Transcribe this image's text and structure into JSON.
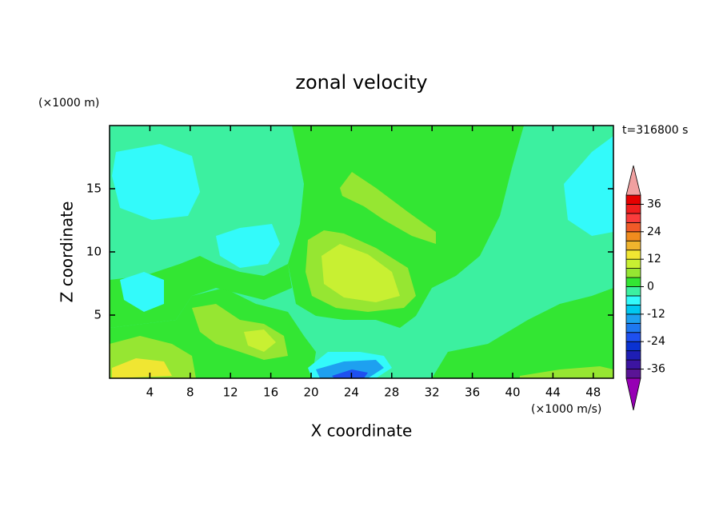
{
  "chart_data": {
    "type": "contour",
    "title": "zonal velocity",
    "xlabel": "X coordinate",
    "ylabel": "Z coordinate",
    "xunit": "(×1000 m/s)",
    "yunit": "(×1000 m)",
    "time_label": "t=316800 s",
    "xlim": [
      0,
      50
    ],
    "ylim": [
      0,
      20
    ],
    "xticks": [
      4,
      8,
      12,
      16,
      20,
      24,
      28,
      32,
      36,
      40,
      44,
      48
    ],
    "yticks": [
      5,
      10,
      15
    ],
    "levels": [
      -40,
      -36,
      -32,
      -28,
      -24,
      -20,
      -16,
      -12,
      -8,
      -4,
      0,
      4,
      8,
      12,
      16,
      20,
      24,
      28,
      32,
      36,
      40
    ],
    "colors": [
      "#5a1496",
      "#3c14a0",
      "#1e1eb4",
      "#0a32d2",
      "#1e50f0",
      "#1e78f0",
      "#1ea0f0",
      "#00c8f0",
      "#33fafa",
      "#3cf0a0",
      "#33e633",
      "#96e632",
      "#c8f032",
      "#f0e632",
      "#f0b42d",
      "#f08c1e",
      "#f05a28",
      "#fa3c3c",
      "#f01e1e",
      "#e60000"
    ],
    "extend_colors": [
      "#9600b4",
      "#f0a0a0"
    ],
    "cbar_ticks": [
      -36,
      -24,
      -12,
      0,
      12,
      24,
      36
    ]
  }
}
